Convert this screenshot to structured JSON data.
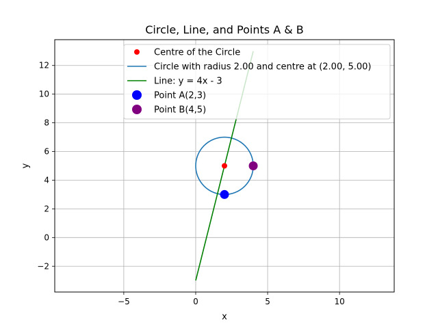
{
  "chart_data": {
    "type": "scatter",
    "title": "Circle, Line, and Points A & B",
    "xlabel": "x",
    "ylabel": "y",
    "xlim": [
      -9.8,
      13.8
    ],
    "ylim": [
      -3.8,
      13.8
    ],
    "grid": true,
    "x_ticks": [
      -5,
      0,
      5,
      10
    ],
    "x_tick_labels": [
      "−5",
      "0",
      "5",
      "10"
    ],
    "y_ticks": [
      -2,
      0,
      2,
      4,
      6,
      8,
      10,
      12
    ],
    "y_tick_labels": [
      "−2",
      "0",
      "2",
      "4",
      "6",
      "8",
      "10",
      "12"
    ],
    "legend_position": "top-center",
    "series": [
      {
        "name": "Centre of the Circle",
        "kind": "point",
        "x": 2,
        "y": 5,
        "color": "#ff0000",
        "size": "small"
      },
      {
        "name": "Circle with radius 2.00 and centre at (2.00, 5.00)",
        "kind": "circle",
        "cx": 2,
        "cy": 5,
        "r": 2,
        "color": "#1f77b4"
      },
      {
        "name": "Line: y = 4x - 3",
        "kind": "line",
        "slope": 4,
        "intercept": -3,
        "x_range": [
          0,
          4
        ],
        "color": "#008000"
      },
      {
        "name": "Point A(2,3)",
        "kind": "point",
        "x": 2,
        "y": 3,
        "color": "#0000ff",
        "size": "large"
      },
      {
        "name": "Point B(4,5)",
        "kind": "point",
        "x": 4,
        "y": 5,
        "color": "#800080",
        "size": "large"
      }
    ]
  }
}
